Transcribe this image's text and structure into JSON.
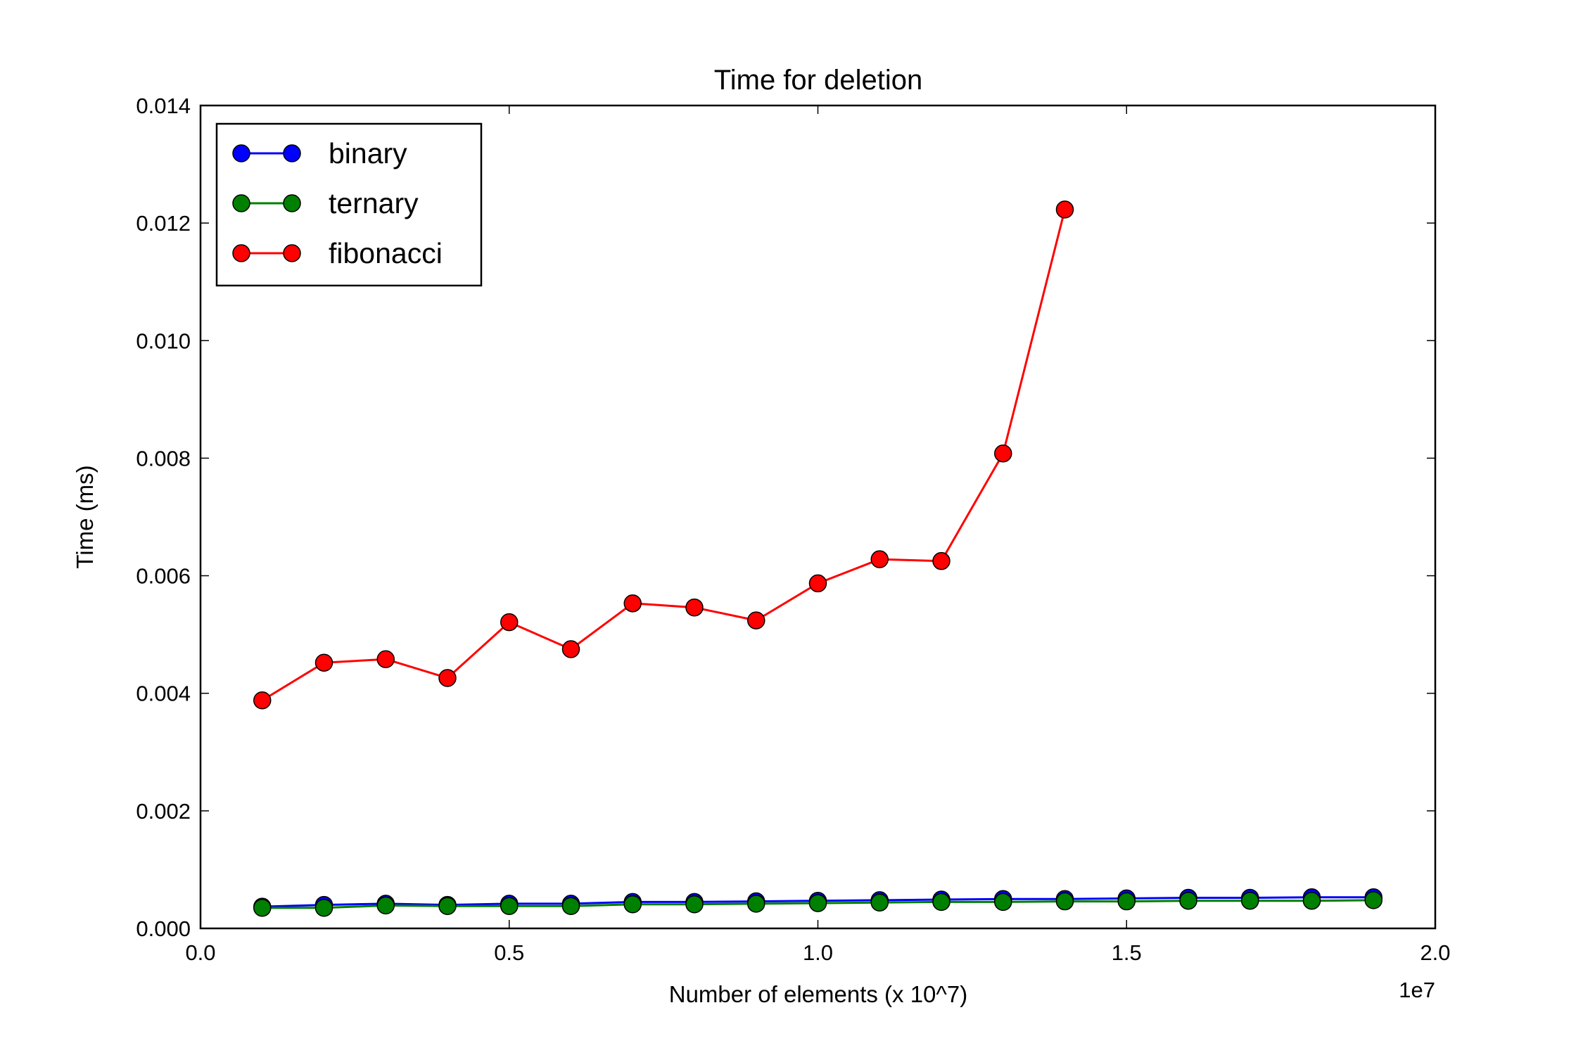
{
  "chart_data": {
    "type": "line",
    "title": "Time for deletion",
    "xlabel": "Number of elements (x 10^7)",
    "ylabel": "Time (ms)",
    "x_offset_label": "1e7",
    "xlim": [
      0.0,
      2.0
    ],
    "ylim": [
      0.0,
      0.014
    ],
    "xticks": [
      0.0,
      0.5,
      1.0,
      1.5,
      2.0
    ],
    "xtick_labels": [
      "0.0",
      "0.5",
      "1.0",
      "1.5",
      "2.0"
    ],
    "yticks": [
      0.0,
      0.002,
      0.004,
      0.006,
      0.008,
      0.01,
      0.012,
      0.014
    ],
    "ytick_labels": [
      "0.000",
      "0.002",
      "0.004",
      "0.006",
      "0.008",
      "0.010",
      "0.012",
      "0.014"
    ],
    "grid": false,
    "legend_position": "top-left",
    "series": [
      {
        "name": "binary",
        "color": "#0000ff",
        "x": [
          0.1,
          0.2,
          0.3,
          0.4,
          0.5,
          0.6,
          0.7,
          0.8,
          0.9,
          1.0,
          1.1,
          1.2,
          1.3,
          1.4,
          1.5,
          1.6,
          1.7,
          1.8,
          1.9
        ],
        "values": [
          0.00037,
          0.0004,
          0.00042,
          0.0004,
          0.00042,
          0.00042,
          0.00045,
          0.00045,
          0.00046,
          0.00047,
          0.00048,
          0.00049,
          0.0005,
          0.0005,
          0.00051,
          0.00052,
          0.00052,
          0.00053,
          0.00053
        ]
      },
      {
        "name": "ternary",
        "color": "#008000",
        "x": [
          0.1,
          0.2,
          0.3,
          0.4,
          0.5,
          0.6,
          0.7,
          0.8,
          0.9,
          1.0,
          1.1,
          1.2,
          1.3,
          1.4,
          1.5,
          1.6,
          1.7,
          1.8,
          1.9
        ],
        "values": [
          0.00035,
          0.00035,
          0.00039,
          0.00038,
          0.00038,
          0.00038,
          0.00041,
          0.00041,
          0.00042,
          0.00043,
          0.00044,
          0.00045,
          0.00045,
          0.00046,
          0.00046,
          0.00047,
          0.00047,
          0.00047,
          0.00048
        ]
      },
      {
        "name": "fibonacci",
        "color": "#ff0000",
        "x": [
          0.1,
          0.2,
          0.3,
          0.4,
          0.5,
          0.6,
          0.7,
          0.8,
          0.9,
          1.0,
          1.1,
          1.2,
          1.3,
          1.4
        ],
        "values": [
          0.00388,
          0.00452,
          0.00458,
          0.00426,
          0.00521,
          0.00475,
          0.00553,
          0.00546,
          0.00524,
          0.00587,
          0.00628,
          0.00625,
          0.00808,
          0.01223
        ]
      }
    ]
  }
}
